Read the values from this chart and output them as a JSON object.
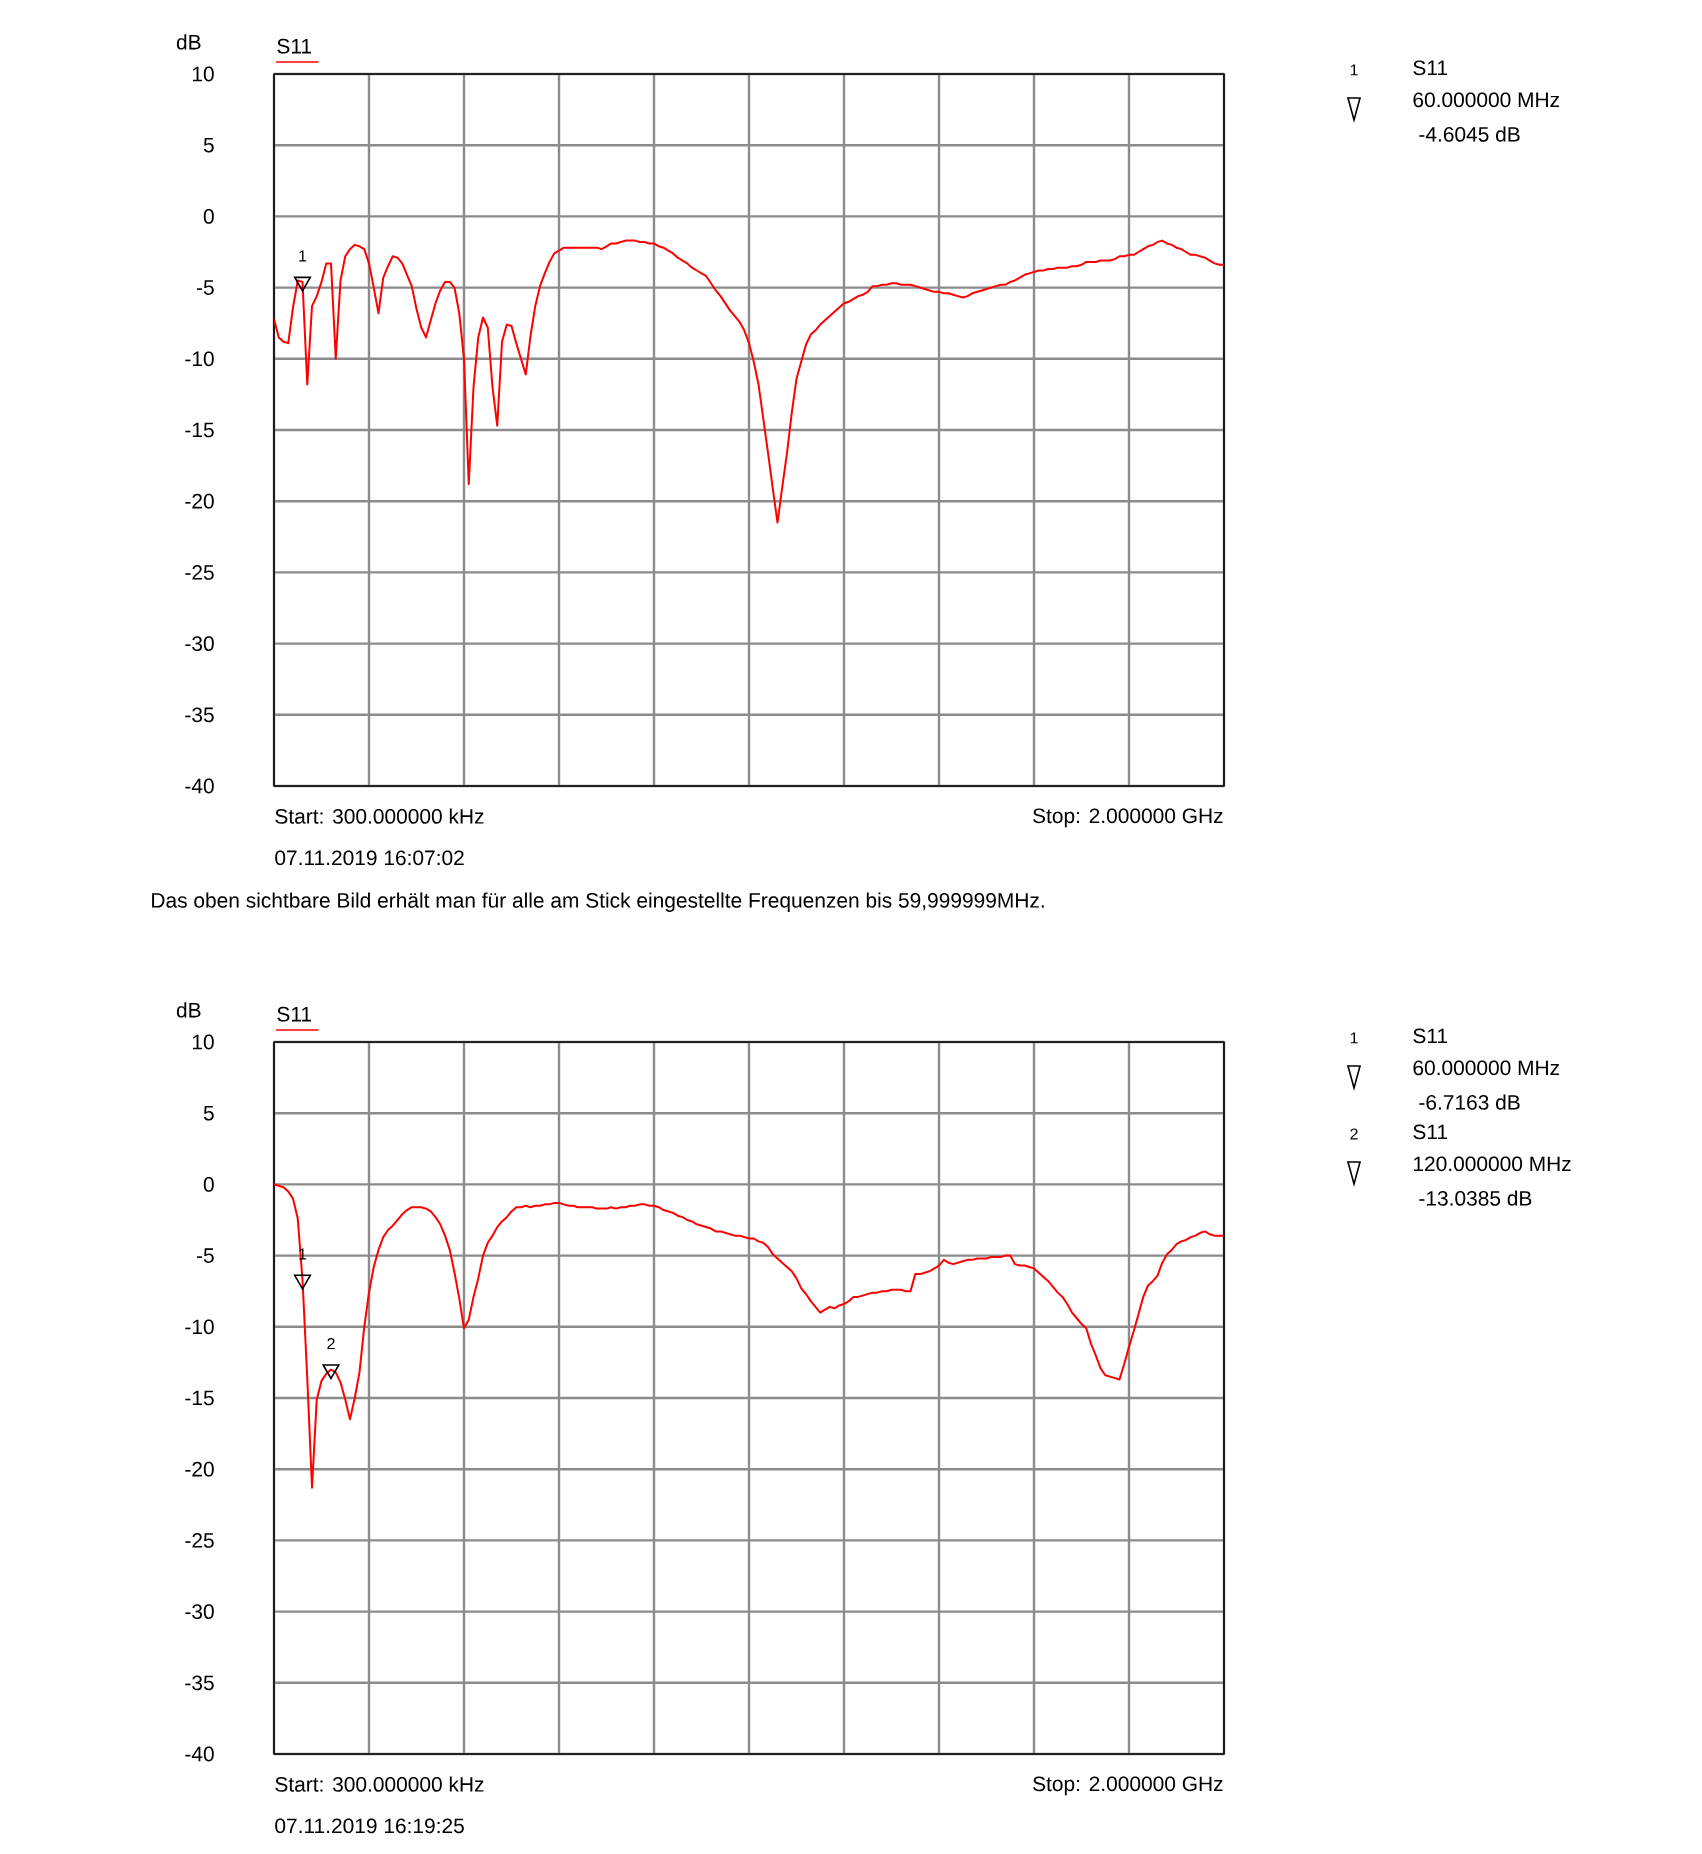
{
  "chart_data": [
    {
      "type": "line",
      "title": "S11",
      "ylabel": "dB",
      "ylim": [
        -40,
        10
      ],
      "yticks": [
        -40,
        -35,
        -30,
        -25,
        -20,
        -15,
        -10,
        -5,
        0,
        5,
        10
      ],
      "grid": true,
      "tick_labels": "y",
      "line_style": "solid",
      "categories": [
        null,
        null,
        null,
        null,
        null,
        null,
        null,
        null,
        null,
        null,
        null,
        null,
        null,
        null,
        null,
        null,
        null,
        null,
        null,
        null,
        null,
        null,
        null,
        null,
        null,
        null,
        null,
        null,
        null,
        null,
        null,
        null,
        null,
        null,
        null,
        null,
        null,
        null,
        null,
        null,
        null,
        null,
        null,
        null,
        null,
        null,
        null,
        null,
        null,
        null,
        null,
        null,
        null,
        null,
        null,
        null,
        null,
        null,
        null,
        null,
        null,
        null,
        null,
        null,
        null,
        null,
        null,
        null,
        null,
        null,
        null,
        null,
        null,
        null,
        null,
        null,
        null,
        null,
        null,
        null,
        null,
        null,
        null,
        null,
        null,
        null,
        null,
        null,
        null,
        null,
        null,
        null,
        null,
        null,
        null,
        null,
        null,
        null,
        null,
        null,
        null,
        null,
        null,
        null,
        null,
        null,
        null,
        null,
        null,
        null,
        null,
        null,
        null,
        null,
        null,
        null,
        null,
        null,
        null,
        null,
        null,
        null,
        null,
        null,
        null,
        null,
        null,
        null,
        null,
        null,
        null,
        null,
        null,
        null,
        null,
        null,
        null,
        null,
        null,
        null,
        null,
        null,
        null,
        null,
        null,
        null,
        null,
        null,
        null,
        null,
        null,
        null,
        null,
        null,
        null,
        null,
        null,
        null,
        null,
        null,
        null,
        null,
        null,
        null,
        null,
        null,
        null,
        null,
        null,
        null,
        null,
        null,
        null,
        null,
        null,
        null,
        null,
        null,
        null,
        null,
        null,
        null,
        null,
        null,
        null,
        null,
        null,
        null,
        null,
        null,
        null,
        null,
        null,
        null,
        null,
        null,
        null,
        null,
        null,
        null,
        null
      ],
      "series": [
        {
          "color": "#ff0000",
          "values": [
            -7.2,
            -8.5,
            -8.8,
            -8.9,
            -6.4,
            -4.5,
            -4.6,
            -11.8,
            -6.3,
            -5.6,
            -4.6,
            -3.3,
            -3.3,
            -10,
            -4.5,
            -2.8,
            -2.3,
            -2.0,
            -2.1,
            -2.3,
            -3.3,
            -5.0,
            -6.8,
            -4.3,
            -3.5,
            -2.8,
            -2.9,
            -3.3,
            -4.1,
            -4.9,
            -6.5,
            -7.8,
            -8.5,
            -7.3,
            -6.1,
            -5.2,
            -4.6,
            -4.6,
            -5.0,
            -6.8,
            -10,
            -18.8,
            -12.0,
            -8.5,
            -7.1,
            -7.8,
            -12,
            -14.7,
            -8.8,
            -7.6,
            -7.7,
            -8.9,
            -10,
            -11.1,
            -8.4,
            -6.3,
            -4.9,
            -4.0,
            -3.2,
            -2.6,
            -2.4,
            -2.2,
            -2.2,
            -2.2,
            -2.2,
            -2.2,
            -2.2,
            -2.2,
            -2.2,
            -2.3,
            -2.1,
            -1.9,
            -1.9,
            -1.8,
            -1.7,
            -1.7,
            -1.7,
            -1.8,
            -1.8,
            -1.9,
            -1.9,
            -2.1,
            -2.2,
            -2.4,
            -2.6,
            -2.9,
            -3.1,
            -3.3,
            -3.6,
            -3.8,
            -4.0,
            -4.2,
            -4.7,
            -5.2,
            -5.6,
            -6.1,
            -6.6,
            -7.0,
            -7.4,
            -8.0,
            -8.9,
            -10.2,
            -11.8,
            -14.2,
            -16.6,
            -19.1,
            -21.5,
            -19,
            -16.6,
            -13.8,
            -11.4,
            -10.2,
            -9.0,
            -8.3,
            -8.0,
            -7.6,
            -7.3,
            -7.0,
            -6.7,
            -6.4,
            -6.1,
            -6.0,
            -5.8,
            -5.6,
            -5.5,
            -5.3,
            -4.9,
            -4.9,
            -4.8,
            -4.8,
            -4.7,
            -4.7,
            -4.8,
            -4.8,
            -4.8,
            -4.9,
            -5.0,
            -5.1,
            -5.2,
            -5.3,
            -5.3,
            -5.4,
            -5.4,
            -5.5,
            -5.6,
            -5.7,
            -5.6,
            -5.4,
            -5.3,
            -5.2,
            -5.1,
            -5.0,
            -4.9,
            -4.8,
            -4.8,
            -4.6,
            -4.5,
            -4.3,
            -4.1,
            -4.0,
            -3.9,
            -3.8,
            -3.8,
            -3.7,
            -3.7,
            -3.6,
            -3.6,
            -3.6,
            -3.5,
            -3.5,
            -3.4,
            -3.2,
            -3.2,
            -3.2,
            -3.1,
            -3.1,
            -3.1,
            -3.0,
            -2.8,
            -2.8,
            -2.7,
            -2.7,
            -2.5,
            -2.3,
            -2.1,
            -2.0,
            -1.8,
            -1.7,
            -1.9,
            -2.0,
            -2.2,
            -2.3,
            -2.5,
            -2.7,
            -2.7,
            -2.8,
            -2.9,
            -3.1,
            -3.3,
            -3.4,
            -3.4
          ]
        },
        {
          "type": "scatter",
          "color": "#000000",
          "marker": "triangle",
          "values": [
            null,
            null,
            null,
            null,
            null,
            null,
            -4.6,
            null,
            null,
            null,
            null,
            null,
            null,
            null,
            null,
            null,
            null,
            null,
            null,
            null,
            null,
            null,
            null,
            null,
            null,
            null,
            null,
            null,
            null,
            null,
            null,
            null,
            null,
            null,
            null,
            null,
            null,
            null,
            null,
            null,
            null,
            null,
            null,
            null,
            null,
            null,
            null,
            null,
            null,
            null,
            null,
            null,
            null,
            null,
            null,
            null,
            null,
            null,
            null,
            null,
            null,
            null,
            null,
            null,
            null,
            null,
            null,
            null,
            null,
            null,
            null,
            null,
            null,
            null,
            null,
            null,
            null,
            null,
            null,
            null,
            null,
            null,
            null,
            null,
            null,
            null,
            null,
            null,
            null,
            null,
            null,
            null,
            null,
            null,
            null,
            null,
            null,
            null,
            null,
            null,
            null,
            null,
            null,
            null,
            null,
            null,
            null,
            null,
            null,
            null,
            null,
            null,
            null,
            null,
            null,
            null,
            null,
            null,
            null,
            null,
            null,
            null,
            null,
            null,
            null,
            null,
            null,
            null,
            null,
            null,
            null,
            null,
            null,
            null,
            null,
            null,
            null,
            null,
            null,
            null,
            null,
            null,
            null,
            null,
            null,
            null,
            null,
            null,
            null,
            null,
            null,
            null,
            null,
            null,
            null,
            null,
            null,
            null,
            null,
            null,
            null,
            null,
            null,
            null,
            null,
            null,
            null,
            null,
            null,
            null,
            null,
            null,
            null,
            null,
            null,
            null,
            null,
            null,
            null,
            null,
            null,
            null,
            null,
            null,
            null,
            null,
            null,
            null,
            null,
            null,
            null,
            null,
            null,
            null,
            null,
            null,
            null,
            null,
            null,
            null,
            null
          ]
        }
      ],
      "annotations": [
        "1",
        "07.11.2019 16:07:02",
        "S11",
        "60.000000 MHz",
        "-4.6045 dB",
        "Start: 300.000000 kHz",
        "Stop: 2.000000 GHz",
        "Das oben sichtbare Bild erhält man für alle am Stick eingestellte Frequenzen bis 59,999999MHz."
      ]
    },
    {
      "type": "line",
      "title": "S11",
      "ylabel": "dB",
      "ylim": [
        -40,
        10
      ],
      "yticks": [
        -40,
        -35,
        -30,
        -25,
        -20,
        -15,
        -10,
        -5,
        0,
        5,
        10
      ],
      "grid": true,
      "tick_labels": "y",
      "line_style": "solid",
      "categories": [
        null,
        null,
        null,
        null,
        null,
        null,
        null,
        null,
        null,
        null,
        null,
        null,
        null,
        null,
        null,
        null,
        null,
        null,
        null,
        null,
        null,
        null,
        null,
        null,
        null,
        null,
        null,
        null,
        null,
        null,
        null,
        null,
        null,
        null,
        null,
        null,
        null,
        null,
        null,
        null,
        null,
        null,
        null,
        null,
        null,
        null,
        null,
        null,
        null,
        null,
        null,
        null,
        null,
        null,
        null,
        null,
        null,
        null,
        null,
        null,
        null,
        null,
        null,
        null,
        null,
        null,
        null,
        null,
        null,
        null,
        null,
        null,
        null,
        null,
        null,
        null,
        null,
        null,
        null,
        null,
        null,
        null,
        null,
        null,
        null,
        null,
        null,
        null,
        null,
        null,
        null,
        null,
        null,
        null,
        null,
        null,
        null,
        null,
        null,
        null,
        null,
        null,
        null,
        null,
        null,
        null,
        null,
        null,
        null,
        null,
        null,
        null,
        null,
        null,
        null,
        null,
        null,
        null,
        null,
        null,
        null,
        null,
        null,
        null,
        null,
        null,
        null,
        null,
        null,
        null,
        null,
        null,
        null,
        null,
        null,
        null,
        null,
        null,
        null,
        null,
        null,
        null,
        null,
        null,
        null,
        null,
        null,
        null,
        null,
        null,
        null,
        null,
        null,
        null,
        null,
        null,
        null,
        null,
        null,
        null,
        null,
        null,
        null,
        null,
        null,
        null,
        null,
        null,
        null,
        null,
        null,
        null,
        null,
        null,
        null,
        null,
        null,
        null,
        null,
        null,
        null,
        null,
        null,
        null,
        null,
        null,
        null,
        null,
        null,
        null,
        null,
        null,
        null,
        null,
        null,
        null,
        null,
        null,
        null,
        null,
        null
      ],
      "series": [
        {
          "color": "#ff0000",
          "values": [
            0,
            -0.1,
            -0.2,
            -0.5,
            -1.0,
            -2.4,
            -6.7,
            -13.6,
            -21.3,
            -15.1,
            -13.8,
            -13.3,
            -13.0,
            -13.2,
            -13.9,
            -15.1,
            -16.5,
            -15.0,
            -13.2,
            -10.0,
            -7.6,
            -5.8,
            -4.6,
            -3.7,
            -3.2,
            -2.9,
            -2.5,
            -2.1,
            -1.8,
            -1.6,
            -1.6,
            -1.6,
            -1.7,
            -1.9,
            -2.3,
            -2.8,
            -3.6,
            -4.6,
            -6.2,
            -8.0,
            -10.1,
            -9.5,
            -7.9,
            -6.6,
            -5.0,
            -4.1,
            -3.6,
            -3.0,
            -2.6,
            -2.3,
            -1.9,
            -1.6,
            -1.6,
            -1.5,
            -1.6,
            -1.5,
            -1.5,
            -1.4,
            -1.4,
            -1.3,
            -1.3,
            -1.4,
            -1.5,
            -1.5,
            -1.6,
            -1.6,
            -1.6,
            -1.6,
            -1.7,
            -1.7,
            -1.7,
            -1.6,
            -1.7,
            -1.6,
            -1.6,
            -1.5,
            -1.5,
            -1.4,
            -1.4,
            -1.5,
            -1.5,
            -1.6,
            -1.8,
            -1.9,
            -2.0,
            -2.2,
            -2.3,
            -2.5,
            -2.6,
            -2.8,
            -2.9,
            -3.0,
            -3.1,
            -3.3,
            -3.3,
            -3.4,
            -3.5,
            -3.6,
            -3.6,
            -3.7,
            -3.8,
            -3.8,
            -4.0,
            -4.1,
            -4.4,
            -4.9,
            -5.2,
            -5.5,
            -5.8,
            -6.1,
            -6.6,
            -7.3,
            -7.7,
            -8.2,
            -8.6,
            -9.0,
            -8.8,
            -8.6,
            -8.7,
            -8.5,
            -8.4,
            -8.2,
            -7.9,
            -7.9,
            -7.8,
            -7.7,
            -7.6,
            -7.6,
            -7.5,
            -7.5,
            -7.4,
            -7.4,
            -7.4,
            -7.5,
            -7.5,
            -6.3,
            -6.3,
            -6.2,
            -6.1,
            -5.9,
            -5.7,
            -5.3,
            -5.5,
            -5.6,
            -5.5,
            -5.4,
            -5.3,
            -5.3,
            -5.2,
            -5.2,
            -5.2,
            -5.1,
            -5.1,
            -5.1,
            -5.0,
            -5.0,
            -5.6,
            -5.7,
            -5.7,
            -5.8,
            -5.9,
            -6.2,
            -6.5,
            -6.8,
            -7.2,
            -7.6,
            -7.9,
            -8.4,
            -9.0,
            -9.4,
            -9.8,
            -10.1,
            -11.2,
            -12.0,
            -12.9,
            -13.4,
            -13.5,
            -13.6,
            -13.7,
            -12.6,
            -11.4,
            -10.3,
            -9.1,
            -7.9,
            -7.1,
            -6.8,
            -6.4,
            -5.5,
            -4.9,
            -4.6,
            -4.2,
            -4.0,
            -3.9,
            -3.7,
            -3.6,
            -3.4,
            -3.3,
            -3.5,
            -3.6,
            -3.6,
            -3.6
          ]
        },
        {
          "type": "scatter",
          "color": "#000000",
          "marker": "triangle",
          "values": [
            null,
            null,
            null,
            null,
            null,
            null,
            -6.7,
            null,
            null,
            null,
            null,
            null,
            -13.0,
            null,
            null,
            null,
            null,
            null,
            null,
            null,
            null,
            null,
            null,
            null,
            null,
            null,
            null,
            null,
            null,
            null,
            null,
            null,
            null,
            null,
            null,
            null,
            null,
            null,
            null,
            null,
            null,
            null,
            null,
            null,
            null,
            null,
            null,
            null,
            null,
            null,
            null,
            null,
            null,
            null,
            null,
            null,
            null,
            null,
            null,
            null,
            null,
            null,
            null,
            null,
            null,
            null,
            null,
            null,
            null,
            null,
            null,
            null,
            null,
            null,
            null,
            null,
            null,
            null,
            null,
            null,
            null,
            null,
            null,
            null,
            null,
            null,
            null,
            null,
            null,
            null,
            null,
            null,
            null,
            null,
            null,
            null,
            null,
            null,
            null,
            null,
            null,
            null,
            null,
            null,
            null,
            null,
            null,
            null,
            null,
            null,
            null,
            null,
            null,
            null,
            null,
            null,
            null,
            null,
            null,
            null,
            null,
            null,
            null,
            null,
            null,
            null,
            null,
            null,
            null,
            null,
            null,
            null,
            null,
            null,
            null,
            null,
            null,
            null,
            null,
            null,
            null,
            null,
            null,
            null,
            null,
            null,
            null,
            null,
            null,
            null,
            null,
            null,
            null,
            null,
            null,
            null,
            null,
            null,
            null,
            null,
            null,
            null,
            null,
            null,
            null,
            null,
            null,
            null,
            null,
            null,
            null,
            null,
            null,
            null,
            null,
            null,
            null,
            null,
            null,
            null,
            null,
            null,
            null,
            null,
            null,
            null,
            null,
            null,
            null,
            null,
            null,
            null,
            null,
            null,
            null,
            null,
            null,
            null,
            null,
            null,
            null
          ]
        }
      ],
      "annotations": [
        "1",
        "2",
        "07.11.2019 16:19:25",
        "S11",
        "60.000000 MHz",
        "-6.7163 dB",
        "S11",
        "120.000000 MHz",
        "-13.0385 dB",
        "Start: 300.000000 kHz",
        "Stop: 2.000000 GHz"
      ]
    }
  ]
}
